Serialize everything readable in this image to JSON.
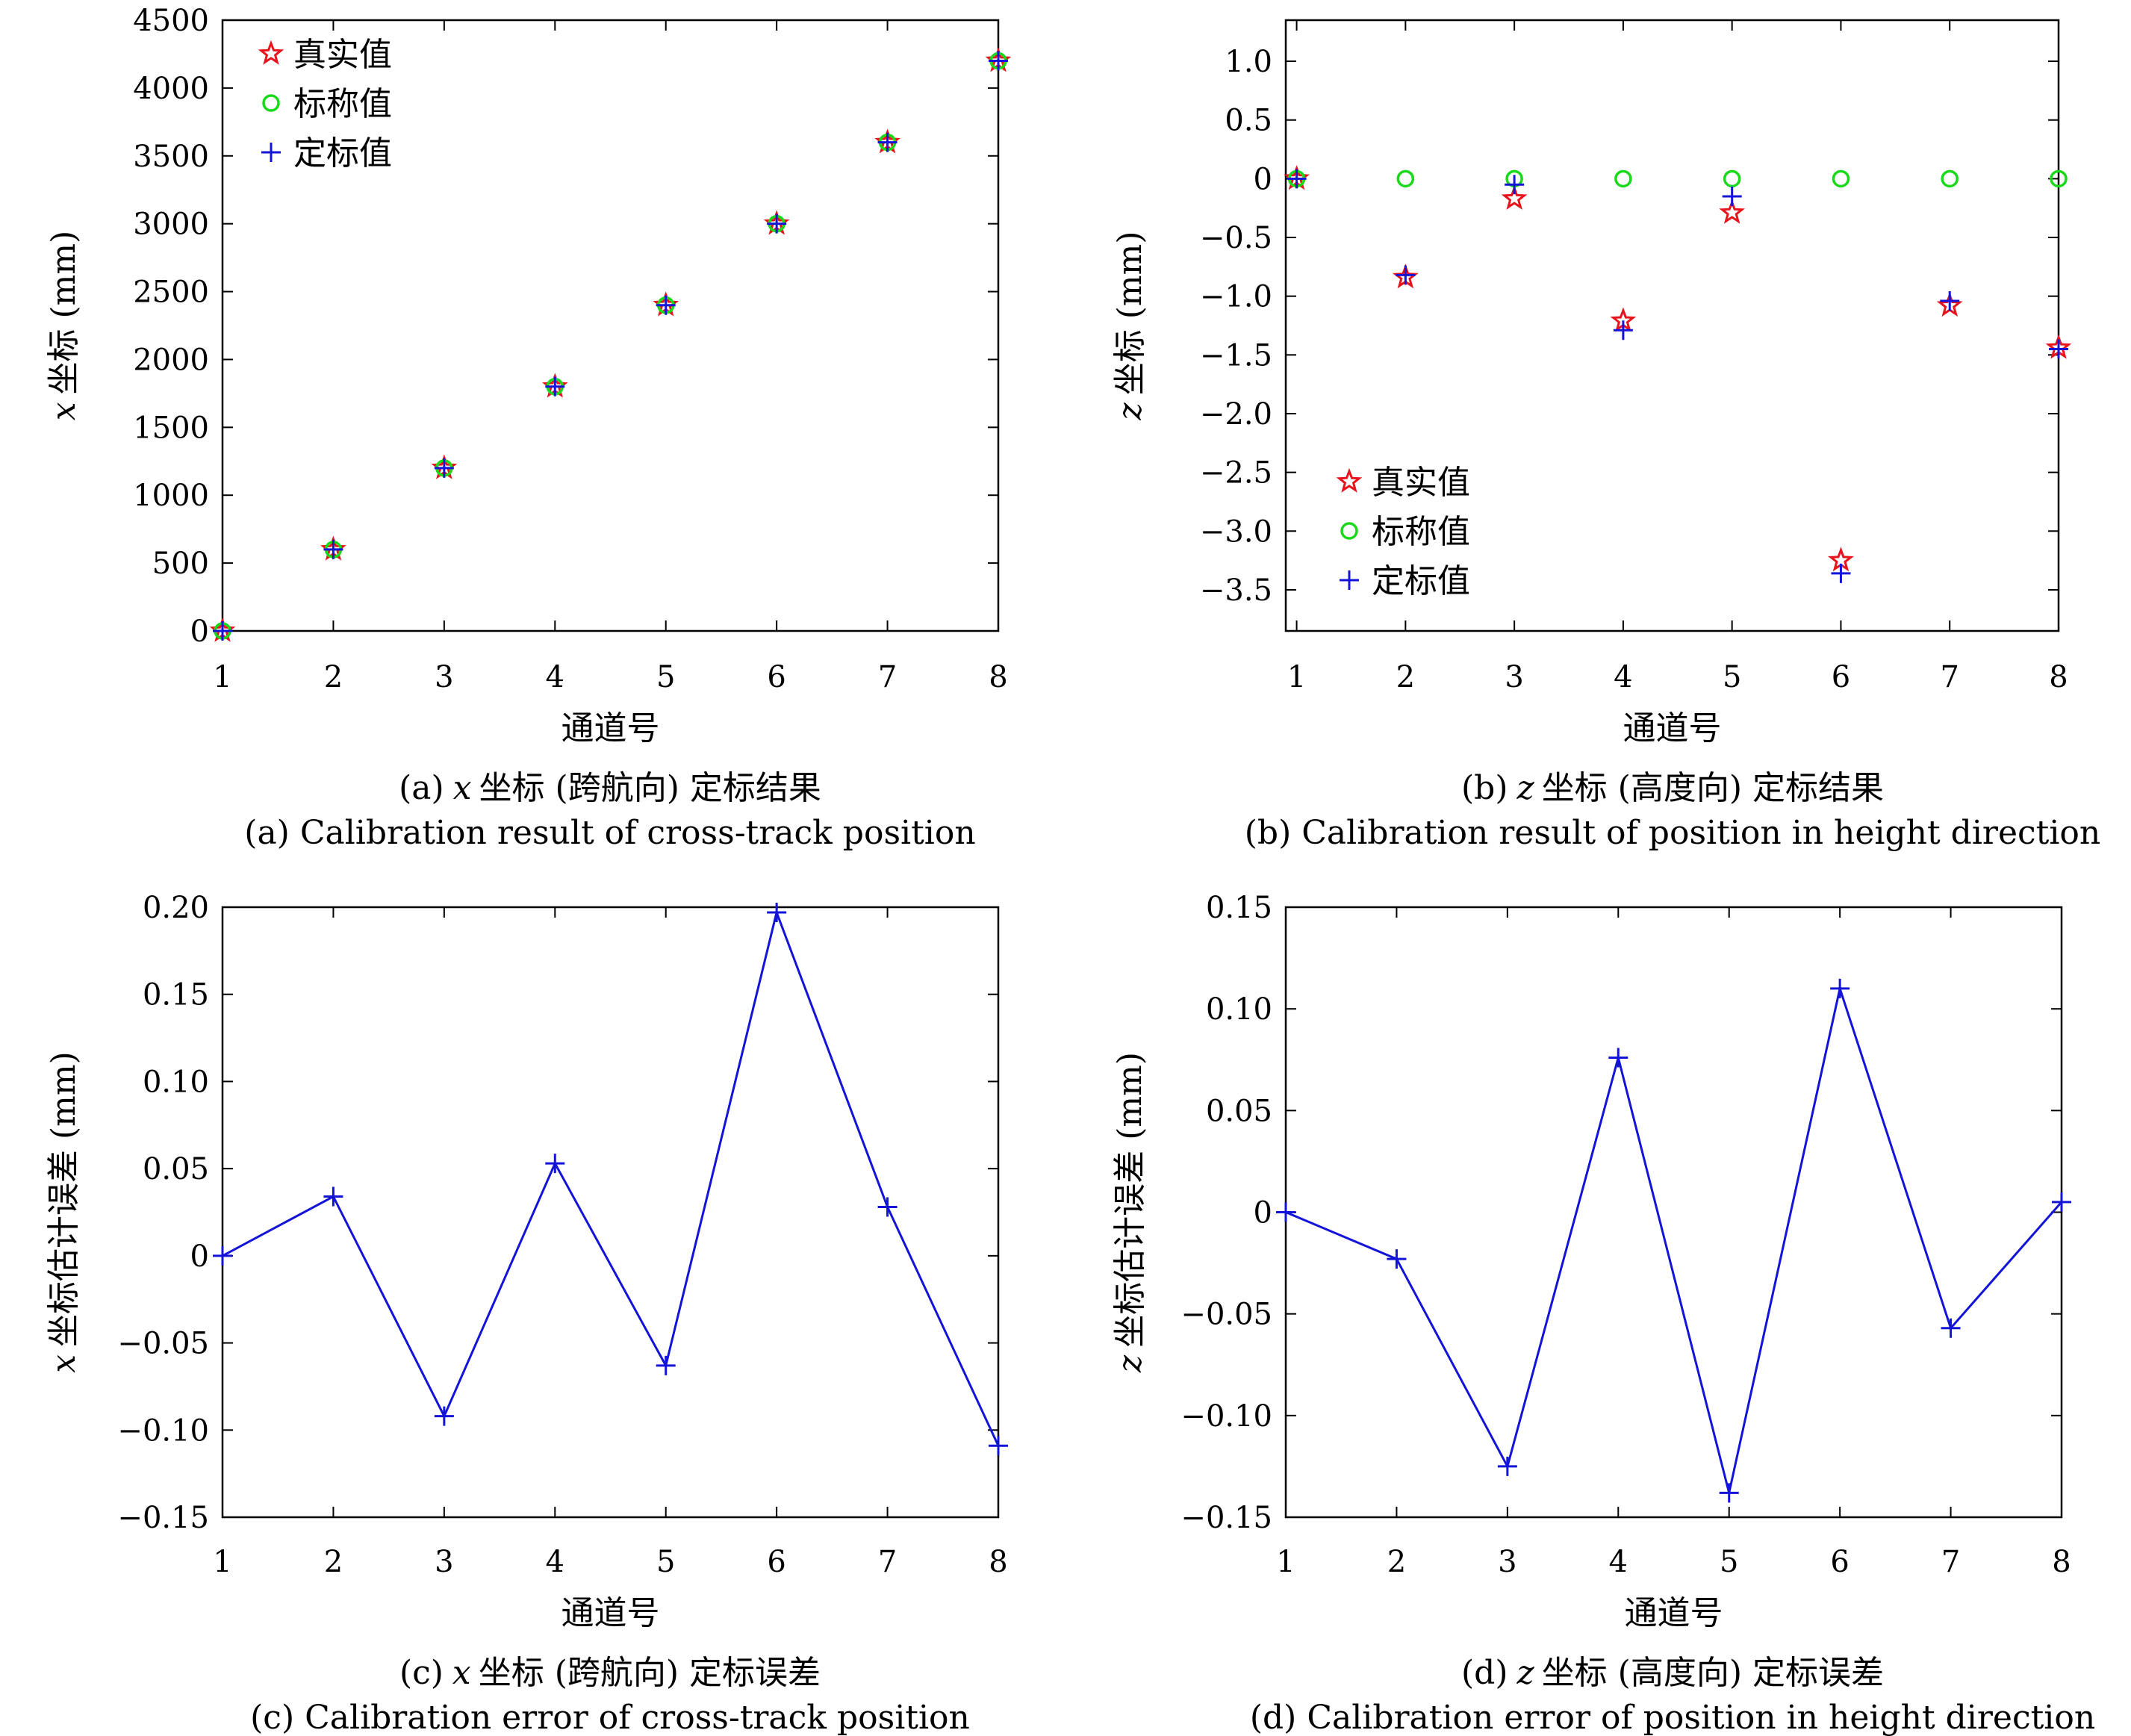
{
  "chart_data": [
    {
      "id": "a",
      "type": "scatter",
      "xlabel": "通道号",
      "ylabel_var": "x",
      "ylabel_rest": "坐标 (mm)",
      "caption_cn_prefix": "(a)",
      "caption_cn_var": "x",
      "caption_cn_rest": "坐标 (跨航向) 定标结果",
      "caption_en": "(a) Calibration result of cross-track position",
      "xlim": [
        1,
        8
      ],
      "ylim": [
        0,
        4500
      ],
      "xticks": [
        "1",
        "2",
        "3",
        "4",
        "5",
        "6",
        "7",
        "8"
      ],
      "yticks": [
        0,
        500,
        1000,
        1500,
        2000,
        2500,
        3000,
        3500,
        4000,
        4500
      ],
      "yticklabels": [
        "0",
        "500",
        "1000",
        "1500",
        "2000",
        "2500",
        "3000",
        "3500",
        "4000",
        "4500"
      ],
      "legend_position": "top-left",
      "x": [
        1,
        2,
        3,
        4,
        5,
        6,
        7,
        8
      ],
      "series": [
        {
          "name": "真实值",
          "marker": "star",
          "color": "#e8141c",
          "values": [
            0,
            600,
            1200,
            1800,
            2400,
            3000,
            3600,
            4200
          ]
        },
        {
          "name": "标称值",
          "marker": "circle",
          "color": "#1ad81a",
          "values": [
            0,
            600,
            1200,
            1800,
            2400,
            3000,
            3600,
            4200
          ]
        },
        {
          "name": "定标值",
          "marker": "plus",
          "color": "#1414d8",
          "values": [
            0,
            600,
            1200,
            1800,
            2400,
            3000,
            3600,
            4200
          ]
        }
      ]
    },
    {
      "id": "b",
      "type": "scatter",
      "xlabel": "通道号",
      "ylabel_var": "z",
      "ylabel_rest": "坐标 (mm)",
      "caption_cn_prefix": "(b)",
      "caption_cn_var": "z",
      "caption_cn_rest": "坐标 (高度向) 定标结果",
      "caption_en": "(b) Calibration result of position in height direction",
      "xlim": [
        0.9,
        8
      ],
      "ylim": [
        -3.85,
        1.35
      ],
      "xticks": [
        "1",
        "2",
        "3",
        "4",
        "5",
        "6",
        "7",
        "8"
      ],
      "yticks": [
        1.0,
        0.5,
        0,
        -0.5,
        -1.0,
        -1.5,
        -2.0,
        -2.5,
        -3.0,
        -3.5
      ],
      "yticklabels": [
        "1.0",
        "0.5",
        "0",
        "−0.5",
        "−1.0",
        "−1.5",
        "−2.0",
        "−2.5",
        "−3.0",
        "−3.5"
      ],
      "legend_position": "bottom-left",
      "x": [
        1,
        2,
        3,
        4,
        5,
        6,
        7,
        8
      ],
      "series": [
        {
          "name": "真实值",
          "marker": "star",
          "color": "#e8141c",
          "values": [
            0,
            -0.84,
            -0.17,
            -1.21,
            -0.29,
            -3.25,
            -1.08,
            -1.44
          ]
        },
        {
          "name": "标称值",
          "marker": "circle",
          "color": "#1ad81a",
          "values": [
            0,
            0,
            0,
            0,
            0,
            0,
            0,
            0
          ]
        },
        {
          "name": "定标值",
          "marker": "plus",
          "color": "#1414d8",
          "values": [
            0,
            -0.82,
            -0.05,
            -1.29,
            -0.15,
            -3.36,
            -1.04,
            -1.45
          ]
        }
      ]
    },
    {
      "id": "c",
      "type": "line",
      "xlabel": "通道号",
      "ylabel_var": "x",
      "ylabel_rest": "坐标估计误差 (mm)",
      "caption_cn_prefix": "(c)",
      "caption_cn_var": "x",
      "caption_cn_rest": "坐标 (跨航向) 定标误差",
      "caption_en": "(c) Calibration error of cross-track position",
      "xlim": [
        1,
        8
      ],
      "ylim": [
        -0.15,
        0.2
      ],
      "xticks": [
        "1",
        "2",
        "3",
        "4",
        "5",
        "6",
        "7",
        "8"
      ],
      "yticks": [
        0.2,
        0.15,
        0.1,
        0.05,
        0,
        -0.05,
        -0.1,
        -0.15
      ],
      "yticklabels": [
        "0.20",
        "0.15",
        "0.10",
        "0.05",
        "0",
        "−0.05",
        "−0.10",
        "−0.15"
      ],
      "x": [
        1,
        2,
        3,
        4,
        5,
        6,
        7,
        8
      ],
      "series": [
        {
          "marker": "plus",
          "color": "#1414d8",
          "values": [
            0,
            0.034,
            -0.092,
            0.053,
            -0.063,
            0.197,
            0.028,
            -0.109
          ]
        }
      ]
    },
    {
      "id": "d",
      "type": "line",
      "xlabel": "通道号",
      "ylabel_var": "z",
      "ylabel_rest": "坐标估计误差 (mm)",
      "caption_cn_prefix": "(d)",
      "caption_cn_var": "z",
      "caption_cn_rest": "坐标 (高度向) 定标误差",
      "caption_en": "(d) Calibration error of position in height direction",
      "xlim": [
        1,
        8
      ],
      "ylim": [
        -0.15,
        0.15
      ],
      "xticks": [
        "1",
        "2",
        "3",
        "4",
        "5",
        "6",
        "7",
        "8"
      ],
      "yticks": [
        0.15,
        0.1,
        0.05,
        0,
        -0.05,
        -0.1,
        -0.15
      ],
      "yticklabels": [
        "0.15",
        "0.10",
        "0.05",
        "0",
        "−0.05",
        "−0.10",
        "−0.15"
      ],
      "x": [
        1,
        2,
        3,
        4,
        5,
        6,
        7,
        8
      ],
      "series": [
        {
          "marker": "plus",
          "color": "#1414d8",
          "values": [
            0,
            -0.023,
            -0.125,
            0.076,
            -0.138,
            0.11,
            -0.057,
            0.005
          ]
        }
      ]
    }
  ]
}
